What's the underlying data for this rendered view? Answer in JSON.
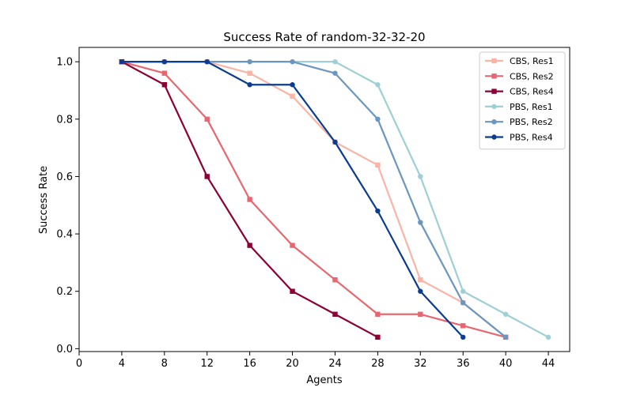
{
  "chart_data": {
    "type": "line",
    "title": "Success Rate of random-32-32-20",
    "xlabel": "Agents",
    "ylabel": "Success Rate",
    "xlim": [
      0,
      46
    ],
    "ylim": [
      -0.01,
      1.05
    ],
    "xticks": [
      "0",
      "4",
      "8",
      "12",
      "16",
      "20",
      "24",
      "28",
      "32",
      "36",
      "40",
      "44"
    ],
    "yticks": [
      "0.0",
      "0.2",
      "0.4",
      "0.6",
      "0.8",
      "1.0"
    ],
    "grid": false,
    "legend_position": "top-right",
    "series": [
      {
        "name": "CBS, Res1",
        "color": "#f9b4a6",
        "marker": "square",
        "x": [
          4,
          8,
          12,
          16,
          20,
          24,
          28,
          32,
          36,
          40
        ],
        "y": [
          1.0,
          1.0,
          1.0,
          0.96,
          0.88,
          0.72,
          0.64,
          0.24,
          0.16,
          0.04
        ]
      },
      {
        "name": "CBS, Res2",
        "color": "#e6676f",
        "marker": "square",
        "x": [
          4,
          8,
          12,
          16,
          20,
          24,
          28,
          32,
          36,
          40
        ],
        "y": [
          1.0,
          0.96,
          0.8,
          0.52,
          0.36,
          0.24,
          0.12,
          0.12,
          0.08,
          0.04
        ]
      },
      {
        "name": "CBS, Res4",
        "color": "#8c0033",
        "marker": "square",
        "x": [
          4,
          8,
          12,
          16,
          20,
          24,
          28
        ],
        "y": [
          1.0,
          0.92,
          0.6,
          0.36,
          0.2,
          0.12,
          0.04
        ]
      },
      {
        "name": "PBS, Res1",
        "color": "#9ecfd5",
        "marker": "circle",
        "x": [
          4,
          8,
          12,
          16,
          20,
          24,
          28,
          32,
          36,
          40,
          44
        ],
        "y": [
          1.0,
          1.0,
          1.0,
          1.0,
          1.0,
          1.0,
          0.92,
          0.6,
          0.2,
          0.12,
          0.04
        ]
      },
      {
        "name": "PBS, Res2",
        "color": "#6a96c0",
        "marker": "circle",
        "x": [
          4,
          8,
          12,
          16,
          20,
          24,
          28,
          32,
          36,
          40
        ],
        "y": [
          1.0,
          1.0,
          1.0,
          1.0,
          1.0,
          0.96,
          0.8,
          0.44,
          0.16,
          0.04
        ]
      },
      {
        "name": "PBS, Res4",
        "color": "#0a3d91",
        "marker": "circle",
        "x": [
          4,
          8,
          12,
          16,
          20,
          24,
          28,
          32,
          36
        ],
        "y": [
          1.0,
          1.0,
          1.0,
          0.92,
          0.92,
          0.72,
          0.48,
          0.2,
          0.04
        ]
      }
    ]
  }
}
